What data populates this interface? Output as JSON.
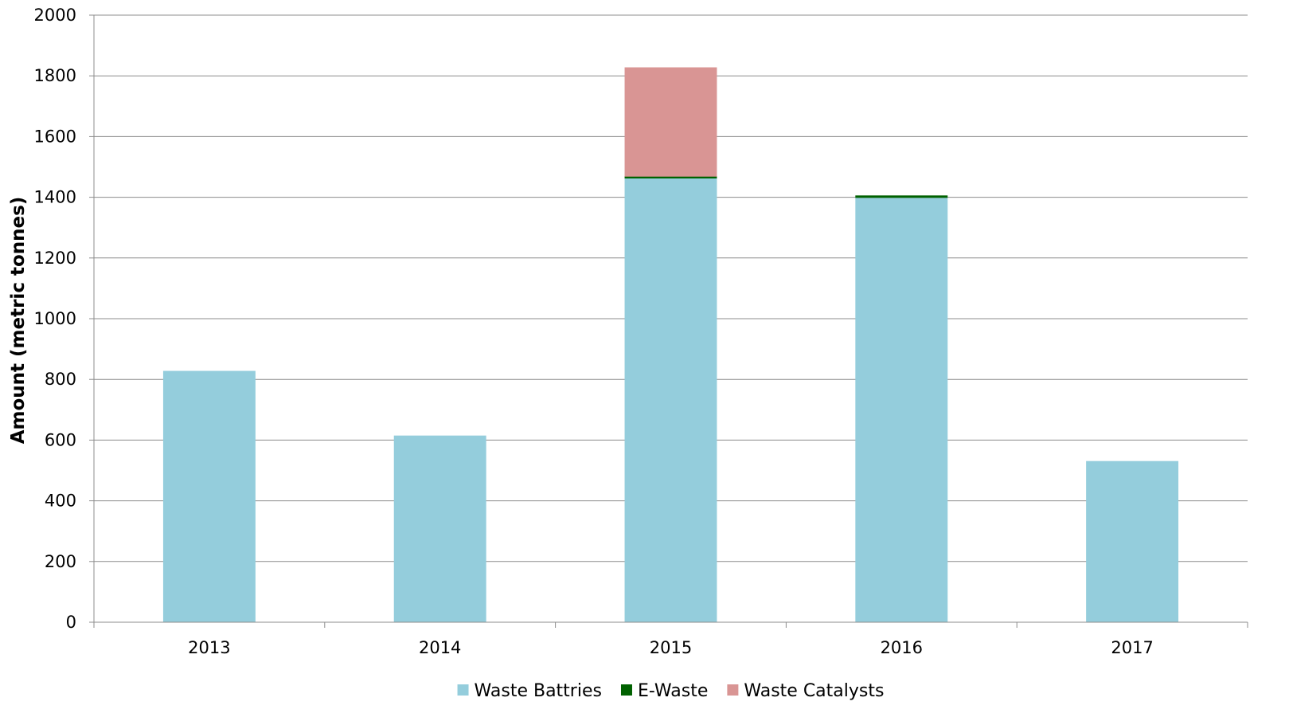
{
  "chart_data": {
    "type": "bar",
    "stacked": true,
    "title": "",
    "xlabel": "",
    "ylabel": "Amount (metric tonnes)",
    "categories": [
      "2013",
      "2014",
      "2015",
      "2016",
      "2017"
    ],
    "ylim": [
      0,
      2000
    ],
    "yticks": [
      0,
      200,
      400,
      600,
      800,
      1000,
      1200,
      1400,
      1600,
      1800,
      2000
    ],
    "grid": true,
    "legend_position": "bottom",
    "series": [
      {
        "name": "Waste Battries",
        "color": "#94CDDC",
        "values": [
          828,
          615,
          1462,
          1398,
          531
        ]
      },
      {
        "name": "E-Waste",
        "color": "#006100",
        "values": [
          0,
          0,
          6,
          8,
          0
        ]
      },
      {
        "name": "Waste Catalysts",
        "color": "#D99594",
        "values": [
          0,
          0,
          360,
          0,
          0
        ]
      }
    ]
  }
}
